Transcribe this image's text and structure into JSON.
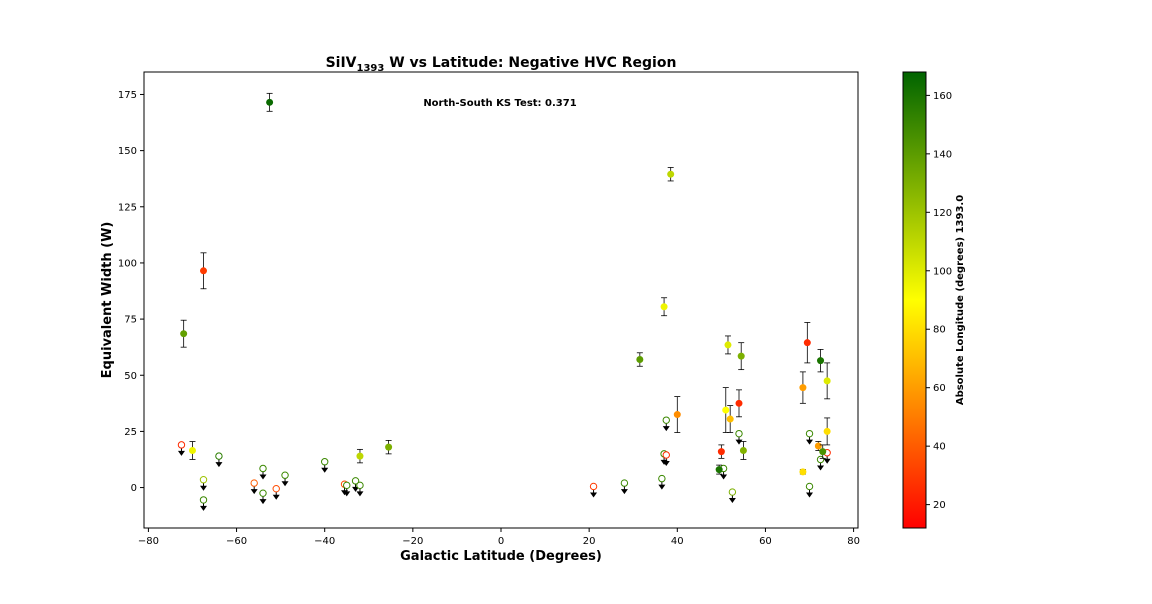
{
  "chart_data": {
    "type": "scatter",
    "title": {
      "main": "SiIV",
      "sub": "1393",
      "rest": " W vs Latitude: Negative HVC Region"
    },
    "xlabel": "Galactic Latitude (Degrees)",
    "ylabel": "Equivalent Width (W)",
    "colorbar_label": "Absolute Longitude (degrees) 1393.0",
    "annotation": "North-South KS Test: 0.371",
    "xlim": [
      -81,
      81
    ],
    "ylim": [
      -18,
      185
    ],
    "xticks": [
      -80,
      -60,
      -40,
      -20,
      0,
      20,
      40,
      60,
      80
    ],
    "xtick_labels": [
      "−80",
      "−60",
      "−40",
      "−20",
      "0",
      "20",
      "40",
      "60",
      "80"
    ],
    "yticks": [
      0,
      25,
      50,
      75,
      100,
      125,
      150,
      175
    ],
    "ytick_labels": [
      "0",
      "25",
      "50",
      "75",
      "100",
      "125",
      "150",
      "175"
    ],
    "colorbar": {
      "range": [
        12,
        168
      ],
      "ticks": [
        20,
        40,
        60,
        80,
        100,
        120,
        140,
        160
      ],
      "tick_labels": [
        "20",
        "40",
        "60",
        "80",
        "100",
        "120",
        "140",
        "160"
      ],
      "colors": [
        "#ff0000",
        "#ffff00",
        "#006400"
      ]
    },
    "grid": false,
    "detections": [
      {
        "x": -72,
        "y": 68.5,
        "err": 6,
        "c": 138
      },
      {
        "x": -70,
        "y": 16.5,
        "err": 4,
        "c": 95
      },
      {
        "x": -67.5,
        "y": 96.5,
        "err": 8,
        "c": 30
      },
      {
        "x": -52.5,
        "y": 171.5,
        "err": 4,
        "c": 165
      },
      {
        "x": -32,
        "y": 14,
        "err": 3,
        "c": 110
      },
      {
        "x": -25.5,
        "y": 18,
        "err": 3,
        "c": 130
      },
      {
        "x": 31.5,
        "y": 57,
        "err": 3,
        "c": 140
      },
      {
        "x": 37,
        "y": 80.5,
        "err": 4,
        "c": 95
      },
      {
        "x": 38.5,
        "y": 139.5,
        "err": 3,
        "c": 110
      },
      {
        "x": 40,
        "y": 32.5,
        "err": 8,
        "c": 55
      },
      {
        "x": 49.5,
        "y": 8,
        "err": 2,
        "c": 160
      },
      {
        "x": 50,
        "y": 16,
        "err": 3,
        "c": 25
      },
      {
        "x": 51,
        "y": 34.5,
        "err": 10,
        "c": 90
      },
      {
        "x": 51.5,
        "y": 63.5,
        "err": 4,
        "c": 100
      },
      {
        "x": 52,
        "y": 30.5,
        "err": 6,
        "c": 70
      },
      {
        "x": 54,
        "y": 37.5,
        "err": 6,
        "c": 25
      },
      {
        "x": 54.5,
        "y": 58.5,
        "err": 6,
        "c": 130
      },
      {
        "x": 55,
        "y": 16.5,
        "err": 4,
        "c": 128
      },
      {
        "x": 68.5,
        "y": 44.5,
        "err": 7,
        "c": 60
      },
      {
        "x": 68.5,
        "y": 7,
        "err": 1,
        "c": 80
      },
      {
        "x": 69.5,
        "y": 64.5,
        "err": 9,
        "c": 25
      },
      {
        "x": 72,
        "y": 18.5,
        "err": 2,
        "c": 60
      },
      {
        "x": 72.5,
        "y": 56.5,
        "err": 5,
        "c": 160
      },
      {
        "x": 73,
        "y": 16,
        "err": 3,
        "c": 145
      },
      {
        "x": 74,
        "y": 47.5,
        "err": 8,
        "c": 100
      },
      {
        "x": 74,
        "y": 25,
        "err": 6,
        "c": 80
      }
    ],
    "upper_limits": [
      {
        "x": -72.5,
        "y": 19,
        "c": 25
      },
      {
        "x": -67.5,
        "y": 3.5,
        "c": 120
      },
      {
        "x": -67.5,
        "y": -5.5,
        "c": 150
      },
      {
        "x": -64,
        "y": 14,
        "c": 155
      },
      {
        "x": -56,
        "y": 2,
        "c": 40
      },
      {
        "x": -54,
        "y": 8.5,
        "c": 150
      },
      {
        "x": -54,
        "y": -2.5,
        "c": 150
      },
      {
        "x": -51,
        "y": -0.5,
        "c": 35
      },
      {
        "x": -49,
        "y": 5.5,
        "c": 150
      },
      {
        "x": -40,
        "y": 11.5,
        "c": 150
      },
      {
        "x": -35.5,
        "y": 1.5,
        "c": 35
      },
      {
        "x": -35,
        "y": 1,
        "c": 150
      },
      {
        "x": -33,
        "y": 3,
        "c": 150
      },
      {
        "x": -32,
        "y": 1,
        "c": 150
      },
      {
        "x": 21,
        "y": 0.5,
        "c": 30
      },
      {
        "x": 28,
        "y": 2,
        "c": 150
      },
      {
        "x": 36.5,
        "y": 4,
        "c": 150
      },
      {
        "x": 37,
        "y": 15,
        "c": 150
      },
      {
        "x": 37.5,
        "y": 14.5,
        "c": 25
      },
      {
        "x": 37.5,
        "y": 30,
        "c": 150
      },
      {
        "x": 50.5,
        "y": 8.5,
        "c": 150
      },
      {
        "x": 52.5,
        "y": -2,
        "c": 130
      },
      {
        "x": 54,
        "y": 24,
        "c": 150
      },
      {
        "x": 70,
        "y": 24,
        "c": 150
      },
      {
        "x": 70,
        "y": 0.5,
        "c": 150
      },
      {
        "x": 72.5,
        "y": 12.5,
        "c": 150
      },
      {
        "x": 74,
        "y": 15.5,
        "c": 25
      }
    ]
  }
}
